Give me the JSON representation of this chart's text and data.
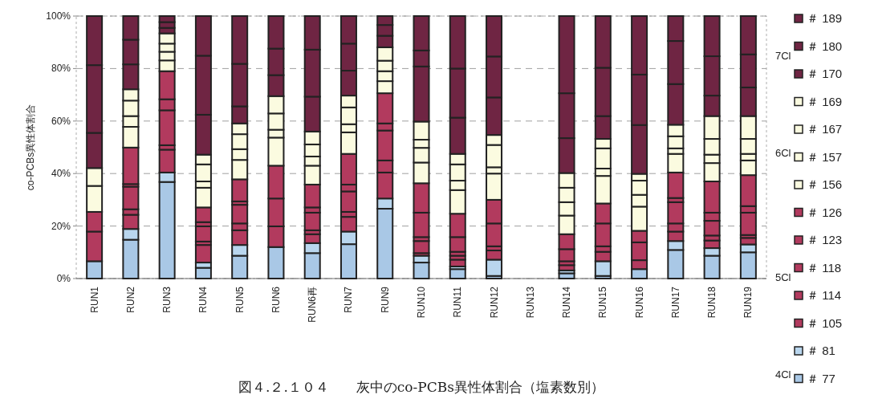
{
  "chart_data": {
    "type": "bar",
    "stacked": true,
    "annotations": [
      "図４.２.１０４　　灰中のco-PCBs異性体割合（塩素数別）",
      "7Cl",
      "6Cl",
      "5Cl",
      "4Cl"
    ],
    "ylabel": "co-PCBs異性体割合",
    "categories": [
      "RUN1",
      "RUN2",
      "RUN3",
      "RUN4",
      "RUN5",
      "RUN6",
      "RUN6再",
      "RUN7",
      "RUN9",
      "RUN10",
      "RUN11",
      "RUN12",
      "RUN13",
      "RUN14",
      "RUN15",
      "RUN16",
      "RUN17",
      "RUN18",
      "RUN19"
    ],
    "ylim": [
      0,
      100
    ],
    "yticks": [
      {
        "value": 0,
        "label": "0%"
      },
      {
        "value": 20,
        "label": "20%"
      },
      {
        "value": 40,
        "label": "40%"
      },
      {
        "value": 60,
        "label": "60%"
      },
      {
        "value": 80,
        "label": "80%"
      },
      {
        "value": 100,
        "label": "100%"
      }
    ],
    "grid": "y",
    "legend": "right",
    "series": [
      {
        "name": "＃ 77",
        "color": "#a9c8e6",
        "values": [
          6.6,
          14.8,
          36.8,
          4.1,
          8.7,
          12.0,
          9.7,
          13.1,
          26.6,
          6.1,
          3.6,
          1.0,
          0,
          2.0,
          1.0,
          3.6,
          10.9,
          8.7,
          10.0
        ]
      },
      {
        "name": "＃ 81",
        "color": "#b9d6ee",
        "values": [
          0,
          4.1,
          3.6,
          2.0,
          4.1,
          0,
          3.8,
          4.8,
          3.9,
          2.6,
          1.0,
          6.2,
          0,
          1.1,
          5.6,
          0,
          3.4,
          2.9,
          3.0
        ]
      },
      {
        "name": "＃ 105",
        "color": "#b23a5e",
        "values": [
          11.3,
          5.4,
          8.7,
          6.7,
          5.6,
          7.9,
          3.4,
          5.6,
          9.9,
          1.0,
          2.6,
          3.5,
          0,
          2.0,
          3.6,
          3.4,
          3.6,
          2.9,
          2.5
        ]
      },
      {
        "name": "＃ 114",
        "color": "#b23a5e",
        "values": [
          0,
          2.1,
          1.7,
          1.3,
          2.6,
          0,
          1.5,
          1.9,
          4.6,
          4.6,
          1.5,
          1.6,
          0,
          1.5,
          2.1,
          0,
          3.1,
          1.9,
          1.1
        ]
      },
      {
        "name": "＃ 118",
        "color": "#b23a5e",
        "values": [
          7.5,
          8.6,
          13.3,
          5.8,
          7.1,
          10.6,
          6.7,
          7.8,
          11.4,
          1.5,
          1.5,
          8.7,
          0,
          4.6,
          8.7,
          6.8,
          8.1,
          5.6,
          8.5
        ]
      },
      {
        "name": "＃ 123",
        "color": "#b23a5e",
        "values": [
          0,
          1.0,
          4.2,
          1.6,
          1.3,
          0,
          2.0,
          2.6,
          2.7,
          9.3,
          5.6,
          0,
          0,
          0,
          0,
          0,
          1.6,
          3.1,
          2.5
        ]
      },
      {
        "name": "＃ 126",
        "color": "#b23a5e",
        "values": [
          0,
          13.9,
          10.7,
          5.6,
          8.4,
          12.5,
          8.7,
          11.7,
          11.5,
          11.2,
          8.9,
          9.0,
          0,
          5.7,
          7.6,
          4.4,
          9.7,
          11.9,
          11.8
        ]
      },
      {
        "name": "＃ 156",
        "color": "#fbfbe0",
        "values": [
          9.9,
          7.9,
          4.1,
          7.5,
          7.4,
          10.7,
          7.2,
          8.2,
          4.6,
          7.9,
          9.0,
          10.0,
          0,
          7.1,
          10.5,
          9.2,
          7.1,
          7.0,
          5.6
        ]
      },
      {
        "name": "＃ 157",
        "color": "#fbfbe0",
        "values": [
          0,
          4.1,
          3.3,
          2.4,
          4.1,
          3.0,
          3.5,
          3.1,
          3.8,
          5.6,
          3.6,
          2.4,
          0,
          5.1,
          2.8,
          4.5,
          2.1,
          3.2,
          2.5
        ]
      },
      {
        "name": "＃ 167",
        "color": "#fbfbe0",
        "values": [
          6.8,
          5.9,
          3.1,
          6.5,
          5.7,
          6.2,
          4.6,
          6.4,
          4.0,
          3.1,
          6.2,
          8.5,
          0,
          5.5,
          7.7,
          5.4,
          4.6,
          6.0,
          5.7
        ]
      },
      {
        "name": "＃ 169",
        "color": "#fbfbe0",
        "values": [
          0,
          4.3,
          3.9,
          3.7,
          4.1,
          6.6,
          4.9,
          4.5,
          5.1,
          6.9,
          4.0,
          3.8,
          0,
          5.6,
          3.6,
          2.6,
          4.4,
          8.7,
          8.7
        ]
      },
      {
        "name": "＃ 170",
        "color": "#6f2543",
        "values": [
          13.4,
          9.5,
          2.1,
          15.2,
          6.5,
          8.0,
          13.3,
          9.5,
          4.4,
          21.0,
          13.8,
          14.3,
          0,
          13.3,
          8.7,
          18.6,
          15.5,
          7.8,
          10.9
        ]
      },
      {
        "name": "＃ 180",
        "color": "#6f2543",
        "values": [
          25.8,
          9.4,
          2.2,
          22.5,
          16.2,
          10.1,
          17.9,
          10.3,
          4.1,
          6.1,
          18.7,
          15.6,
          0,
          17.1,
          18.4,
          19.2,
          16.4,
          15.0,
          12.6
        ]
      },
      {
        "name": "＃ 189",
        "color": "#6f2543",
        "values": [
          18.7,
          9.0,
          2.3,
          15.1,
          18.2,
          12.4,
          12.8,
          10.5,
          3.4,
          13.1,
          20.0,
          15.4,
          0,
          29.4,
          19.7,
          22.3,
          9.5,
          15.3,
          14.6
        ]
      }
    ]
  }
}
